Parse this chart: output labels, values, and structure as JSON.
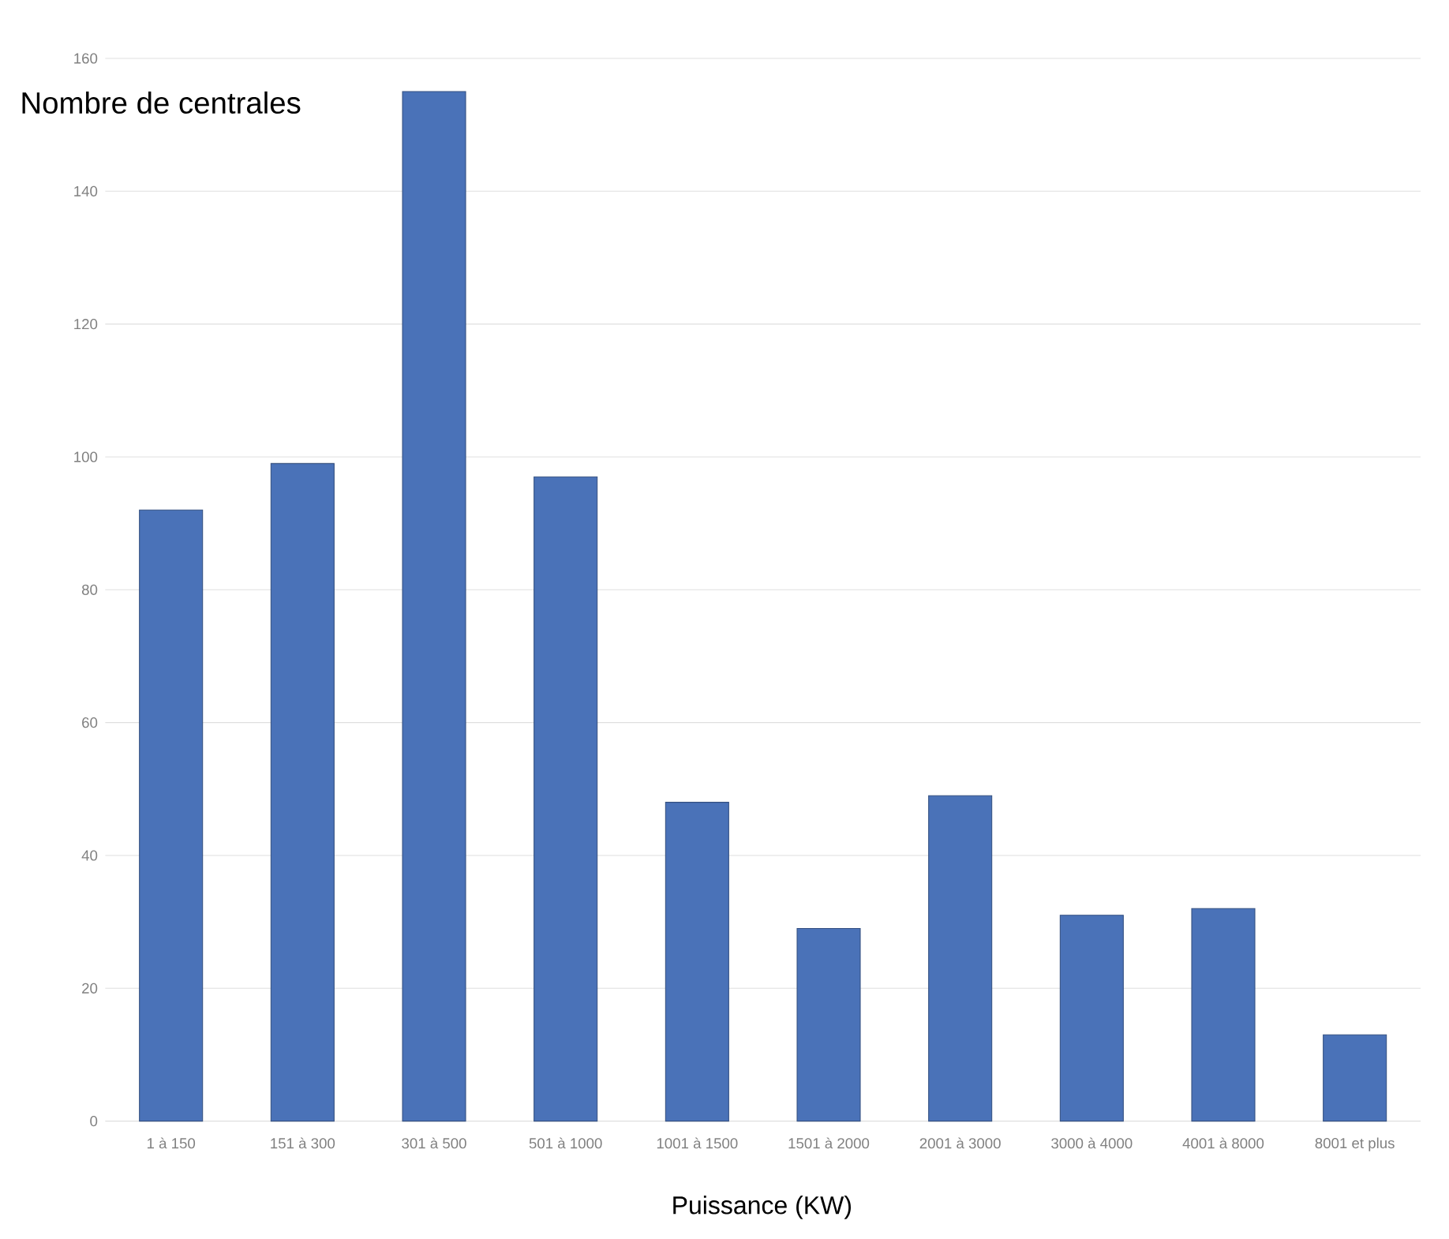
{
  "chart_data": {
    "type": "bar",
    "xlabel": "Puissance (KW)",
    "ylabel": "Nombre de centrales",
    "categories": [
      "1 à 150",
      "151 à 300",
      "301 à 500",
      "501 à 1000",
      "1001 à 1500",
      "1501 à 2000",
      "2001 à 3000",
      "3000 à 4000",
      "4001 à 8000",
      "8001 et plus"
    ],
    "values": [
      92,
      99,
      155,
      97,
      48,
      29,
      49,
      31,
      32,
      13
    ],
    "color": "#4a72b8",
    "ylim": [
      0,
      160
    ],
    "yticks": [
      0,
      20,
      40,
      60,
      80,
      100,
      120,
      140,
      160
    ],
    "grid": "y"
  }
}
